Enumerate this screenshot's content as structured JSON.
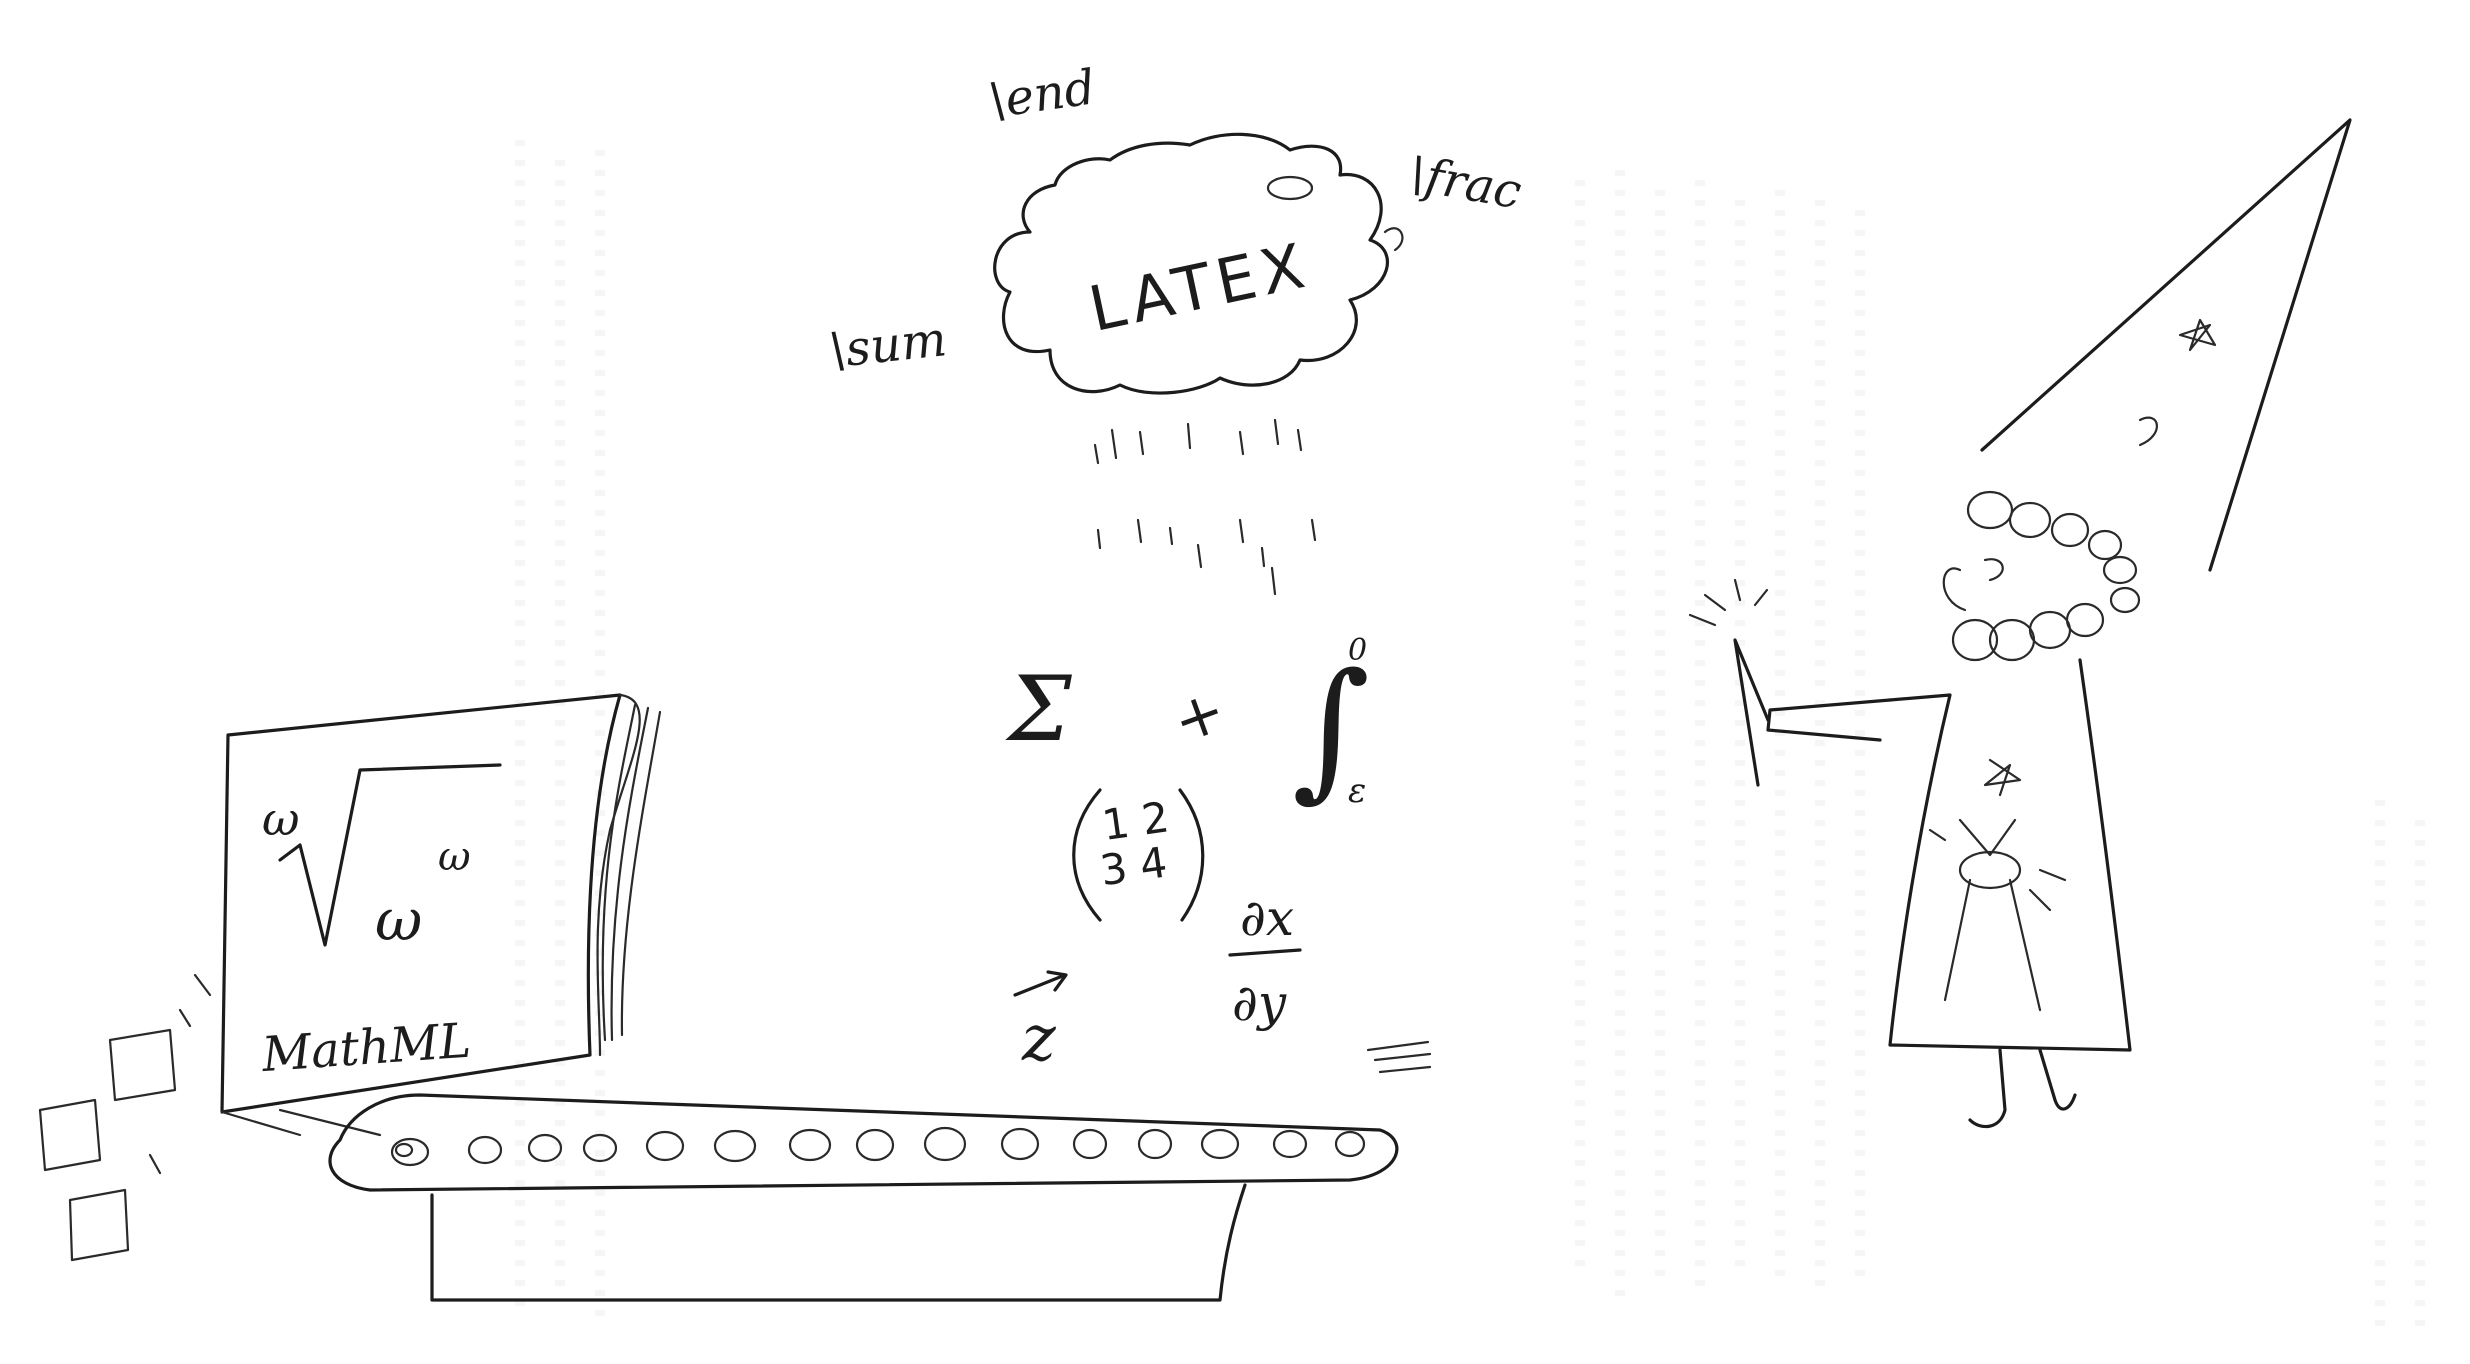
{
  "scene": {
    "cloud": {
      "label": "LATEX",
      "commands": [
        "\\end",
        "\\frac",
        "\\sum"
      ]
    },
    "falling_symbols": {
      "sum": "Σ",
      "plus": "+",
      "integral": "∫",
      "integral_upper": "0",
      "integral_lower": "ε",
      "matrix_top": "1 2",
      "matrix_bottom": "3 4",
      "derivative_num": "∂x",
      "derivative_den": "∂y",
      "vector": "z"
    },
    "monitor": {
      "root_index": "ω",
      "radicand": "ω",
      "exponent": "ω",
      "caption": "MathML"
    }
  }
}
